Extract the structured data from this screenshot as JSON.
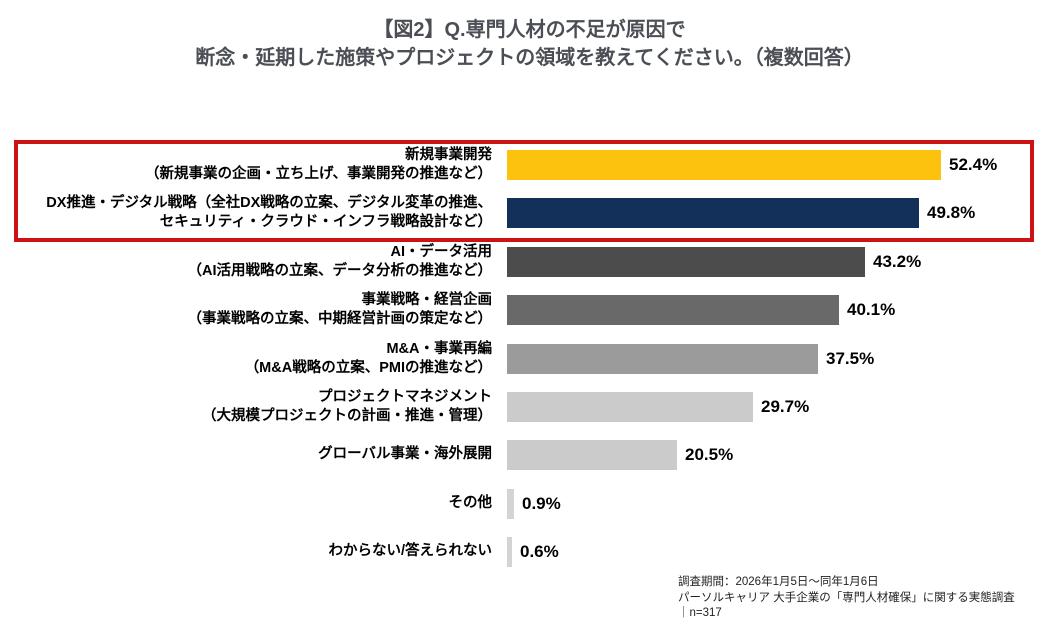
{
  "title": {
    "line1": "【図2】Q.専門人材の不足が原因で",
    "line2": "断念・延期した施策やプロジェクトの領域を教えてください。（複数回答）"
  },
  "chart_data": {
    "type": "bar",
    "orientation": "horizontal",
    "unit": "%",
    "value_range": [
      0,
      52.4
    ],
    "grid": false,
    "legend": false,
    "highlight_box_color": "#cc1212",
    "highlighted_rows": [
      0,
      1
    ],
    "categories": [
      "新規事業開発（新規事業の企画・立ち上げ、事業開発の推進など）",
      "DX推進・デジタル戦略（全社DX戦略の立案、デジタル変革の推進、セキュリティ・クラウド・インフラ戦略設計など）",
      "AI・データ活用（AI活用戦略の立案、データ分析の推進など）",
      "事業戦略・経営企画（事業戦略の立案、中期経営計画の策定など）",
      "M&A・事業再編（M&A戦略の立案、PMIの推進など）",
      "プロジェクトマネジメント（大規模プロジェクトの計画・推進・管理）",
      "グローバル事業・海外展開",
      "その他",
      "わからない/答えられない"
    ],
    "rows": [
      {
        "label_lines": [
          "新規事業開発",
          "（新規事業の企画・立ち上げ、事業開発の推進など）"
        ],
        "value": 52.4,
        "display": "52.4%",
        "color": "#fcc20e",
        "highlighted": true
      },
      {
        "label_lines": [
          "DX推進・デジタル戦略（全社DX戦略の立案、デジタル変革の推進、",
          "セキュリティ・クラウド・インフラ戦略設計など）"
        ],
        "value": 49.8,
        "display": "49.8%",
        "color": "#13305a",
        "highlighted": true
      },
      {
        "label_lines": [
          "AI・データ活用",
          "（AI活用戦略の立案、データ分析の推進など）"
        ],
        "value": 43.2,
        "display": "43.2%",
        "color": "#4c4c4c",
        "highlighted": false
      },
      {
        "label_lines": [
          "事業戦略・経営企画",
          "（事業戦略の立案、中期経営計画の策定など）"
        ],
        "value": 40.1,
        "display": "40.1%",
        "color": "#696969",
        "highlighted": false
      },
      {
        "label_lines": [
          "M&A・事業再編",
          "（M&A戦略の立案、PMIの推進など）"
        ],
        "value": 37.5,
        "display": "37.5%",
        "color": "#9b9b9b",
        "highlighted": false
      },
      {
        "label_lines": [
          "プロジェクトマネジメント",
          "（大規模プロジェクトの計画・推進・管理）"
        ],
        "value": 29.7,
        "display": "29.7%",
        "color": "#cbcbcb",
        "highlighted": false
      },
      {
        "label_lines": [
          "グローバル事業・海外展開"
        ],
        "value": 20.5,
        "display": "20.5%",
        "color": "#cbcbcb",
        "highlighted": false
      },
      {
        "label_lines": [
          "その他"
        ],
        "value": 0.9,
        "display": "0.9%",
        "color": "#d4d4d4",
        "highlighted": false
      },
      {
        "label_lines": [
          "わからない/答えられない"
        ],
        "value": 0.6,
        "display": "0.6%",
        "color": "#d4d4d4",
        "highlighted": false
      }
    ]
  },
  "footer": {
    "lines": [
      "調査期間：2026年1月5日～同年1月6日",
      "パーソルキャリア 大手企業の「専門人材確保」に関する実態調査",
      "｜n=317"
    ]
  }
}
